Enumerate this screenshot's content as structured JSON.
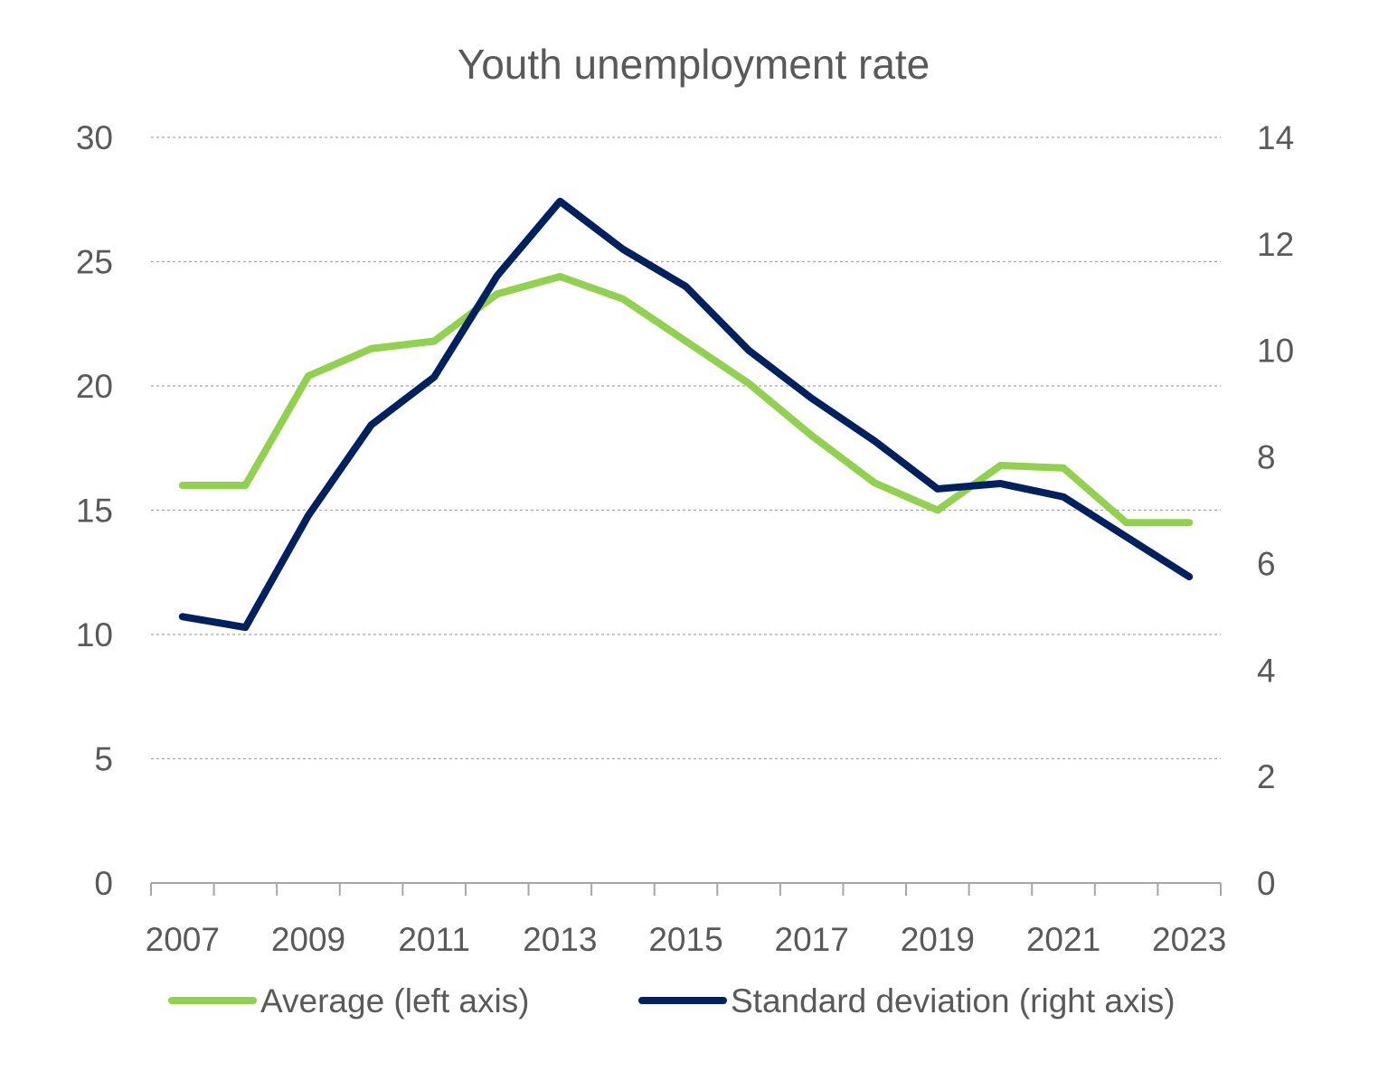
{
  "chart_data": {
    "type": "line",
    "title": "Youth unemployment rate",
    "x": [
      2007,
      2008,
      2009,
      2010,
      2011,
      2012,
      2013,
      2014,
      2015,
      2016,
      2017,
      2018,
      2019,
      2020,
      2021,
      2022,
      2023
    ],
    "x_tick_labels": [
      "2007",
      "2009",
      "2011",
      "2013",
      "2015",
      "2017",
      "2019",
      "2021",
      "2023"
    ],
    "y_left": {
      "ylim": [
        0,
        30
      ],
      "ticks": [
        "0",
        "5",
        "10",
        "15",
        "20",
        "25",
        "30"
      ]
    },
    "y_right": {
      "ylim": [
        0,
        14
      ],
      "ticks": [
        "0",
        "2",
        "4",
        "6",
        "8",
        "10",
        "12",
        "14"
      ]
    },
    "grid": true,
    "legend_position": "bottom",
    "series": [
      {
        "name": "Average (left axis)",
        "axis": "left",
        "color": "#92D050",
        "values": [
          16.0,
          16.0,
          20.4,
          21.5,
          21.8,
          23.7,
          24.4,
          23.5,
          21.8,
          20.1,
          18.0,
          16.1,
          15.0,
          16.8,
          16.7,
          14.5,
          14.5
        ]
      },
      {
        "name": "Standard deviation (right axis)",
        "axis": "right",
        "color": "#002060",
        "values": [
          5.0,
          4.8,
          6.9,
          8.6,
          9.5,
          11.4,
          12.8,
          11.9,
          11.2,
          10.0,
          9.1,
          8.3,
          7.4,
          7.5,
          7.25,
          6.5,
          5.75
        ]
      }
    ]
  }
}
